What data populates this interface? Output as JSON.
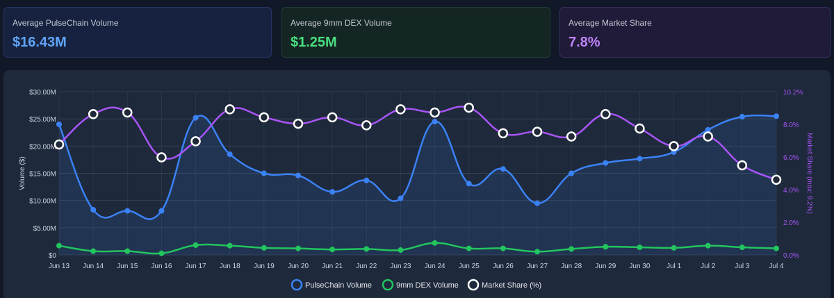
{
  "stats": [
    {
      "label": "Average PulseChain Volume",
      "value": "$16.43M"
    },
    {
      "label": "Average 9mm DEX Volume",
      "value": "$1.25M"
    },
    {
      "label": "Average Market Share",
      "value": "7.8%"
    }
  ],
  "colors": {
    "pulse": "#3b82f6",
    "dex": "#22c55e",
    "share": "#a855f7",
    "share_marker": "#ffffff",
    "grid": "#334155",
    "tick": "#cbd5e1"
  },
  "chart_data": {
    "type": "line",
    "title": "",
    "categories": [
      "Jun 13",
      "Jun 14",
      "Jun 15",
      "Jun 16",
      "Jun 17",
      "Jun 18",
      "Jun 19",
      "Jun 20",
      "Jun 21",
      "Jun 22",
      "Jun 23",
      "Jun 24",
      "Jun 25",
      "Jun 26",
      "Jun 27",
      "Jun 28",
      "Jun 29",
      "Jun 30",
      "Jul 1",
      "Jul 2",
      "Jul 3",
      "Jul 4"
    ],
    "series": [
      {
        "name": "PulseChain Volume",
        "axis": "left",
        "values": [
          24.0,
          8.3,
          8.1,
          8.1,
          25.2,
          18.5,
          15.0,
          14.6,
          11.6,
          13.7,
          10.4,
          24.5,
          13.1,
          15.8,
          9.5,
          15.0,
          16.9,
          17.7,
          18.9,
          23.0,
          25.4,
          25.5
        ]
      },
      {
        "name": "9mm DEX Volume",
        "axis": "left",
        "values": [
          1.7,
          0.7,
          0.7,
          0.3,
          1.8,
          1.7,
          1.3,
          1.2,
          1.0,
          1.1,
          0.9,
          2.2,
          1.2,
          1.2,
          0.6,
          1.1,
          1.5,
          1.4,
          1.3,
          1.7,
          1.4,
          1.2
        ]
      },
      {
        "name": "Market Share (%)",
        "axis": "right",
        "values": [
          6.9,
          8.8,
          8.9,
          6.1,
          7.1,
          9.1,
          8.6,
          8.2,
          8.6,
          8.1,
          9.1,
          8.9,
          9.2,
          7.6,
          7.7,
          7.4,
          8.8,
          7.9,
          6.8,
          7.4,
          5.6,
          4.7
        ]
      }
    ],
    "ylabel": "Volume ($)",
    "ylim": [
      0,
      30
    ],
    "y_ticks": [
      "$0",
      "$5.00M",
      "$10.00M",
      "$15.00M",
      "$20.00M",
      "$25.00M",
      "$30.00M"
    ],
    "y2label": "Market Share (max: 9.2%)",
    "y2lim": [
      0,
      10.2
    ],
    "y2_ticks": [
      "0.0%",
      "2.0%",
      "4.0%",
      "6.0%",
      "8.0%",
      "10.2%"
    ],
    "legend": [
      "PulseChain Volume",
      "9mm DEX Volume",
      "Market Share (%)"
    ],
    "legend_position": "bottom",
    "grid": true
  }
}
